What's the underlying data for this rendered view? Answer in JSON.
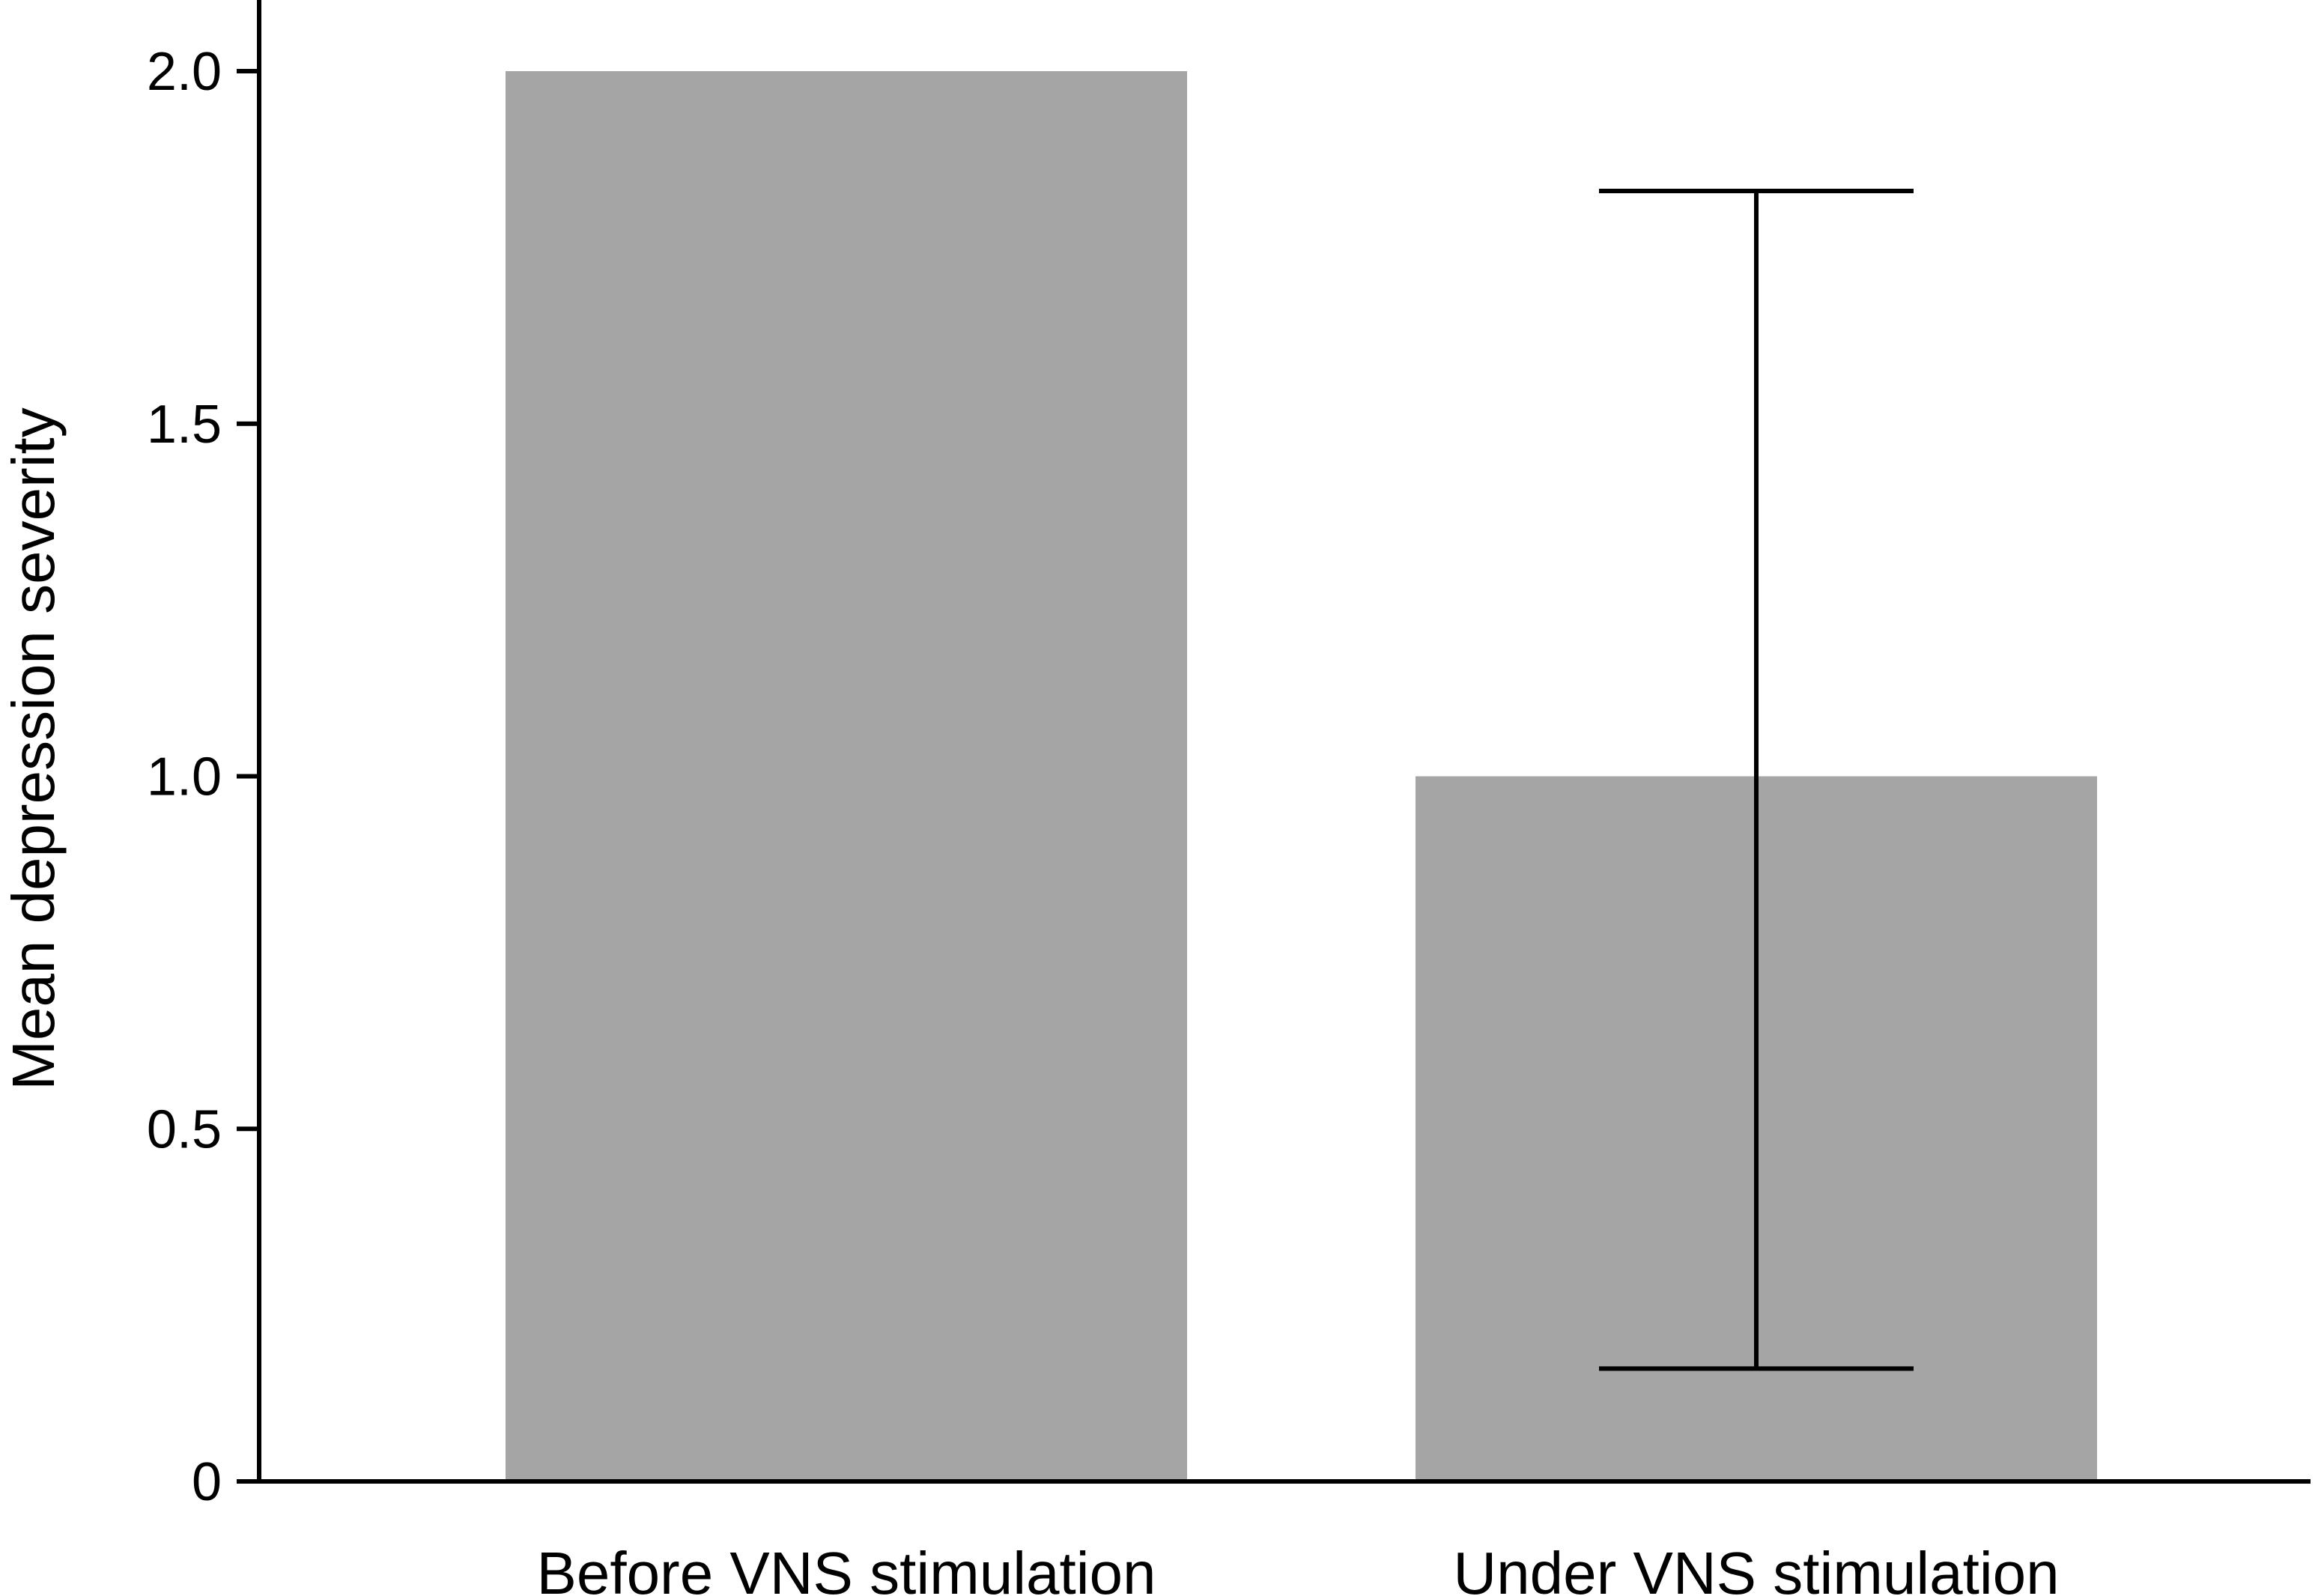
{
  "chart_data": {
    "type": "bar",
    "categories": [
      "Before VNS stimulation",
      "Under VNS stimulation"
    ],
    "values": [
      2.0,
      1.0
    ],
    "error_bars": [
      null,
      {
        "low": 0.16,
        "high": 1.83
      }
    ],
    "title": "",
    "xlabel": "",
    "ylabel": "Mean depression severity",
    "ylim": [
      0,
      2.0
    ],
    "yticks": [
      0,
      0.5,
      1.0,
      1.5,
      2.0
    ],
    "ytick_labels": [
      "0",
      "0.5",
      "1.0",
      "1.5",
      "2.0"
    ],
    "grid": false,
    "colors": {
      "bar": "#a5a5a5",
      "axis": "#000000",
      "error_bar": "#000000"
    }
  }
}
